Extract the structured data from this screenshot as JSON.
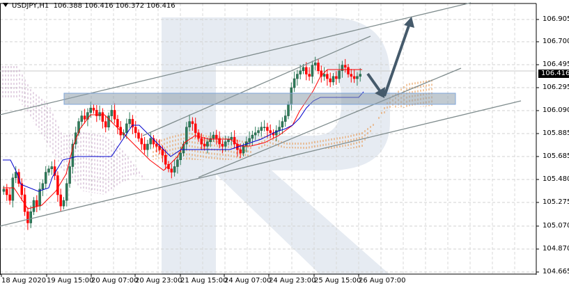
{
  "header": {
    "symbol": "USDJPY,H1",
    "open": "106.388",
    "high": "106.416",
    "low": "106.372",
    "close": "106.416"
  },
  "price_axis": {
    "labels": [
      "106.905",
      "106.700",
      "106.495",
      "106.295",
      "106.090",
      "105.885",
      "105.685",
      "105.480",
      "105.275",
      "105.070",
      "104.870",
      "104.665"
    ],
    "current_price": "106.416"
  },
  "time_axis": {
    "labels": [
      "18 Aug 2020",
      "19 Aug 15:00",
      "20 Aug 07:00",
      "20 Aug 23:00",
      "21 Aug 15:00",
      "24 Aug 07:00",
      "24 Aug 23:00",
      "25 Aug 15:00",
      "26 Aug 07:00"
    ]
  },
  "colors": {
    "bull": "#2e7d5b",
    "bear": "#ff0000",
    "tenkan": "#ff0000",
    "kijun": "#0000cc",
    "cloud_bull": "#e8954a",
    "cloud_bear": "#c8a8c8",
    "trendline": "#7f8c8d",
    "zone": "#8e9eab",
    "arrow": "#455a6b",
    "watermark": "#e6ebf2"
  },
  "chart_data": {
    "type": "candlestick",
    "title": "USDJPY,H1",
    "indicators": [
      "Ichimoku Kinko Hyo"
    ],
    "xlabel": "",
    "ylabel": "",
    "ylim": [
      104.665,
      106.905
    ],
    "x_ticks": [
      "18 Aug 2020",
      "19 Aug 15:00",
      "20 Aug 07:00",
      "20 Aug 23:00",
      "21 Aug 15:00",
      "24 Aug 07:00",
      "24 Aug 23:00",
      "25 Aug 15:00",
      "26 Aug 07:00"
    ],
    "y_ticks": [
      106.905,
      106.7,
      106.495,
      106.295,
      106.09,
      105.885,
      105.685,
      105.48,
      105.275,
      105.07,
      104.87,
      104.665
    ],
    "last_ohlc": {
      "open": 106.388,
      "high": 106.416,
      "low": 106.372,
      "close": 106.416
    },
    "resistance_zone": [
      106.18,
      106.29
    ],
    "forecast": "Pullback to ~106.22 support zone, then rise toward ~106.95",
    "approx_path": [
      {
        "x": "18 Aug 2020",
        "close": 105.35
      },
      {
        "x": "19 Aug 15:00",
        "close": 106.1
      },
      {
        "x": "20 Aug 07:00",
        "close": 105.95
      },
      {
        "x": "20 Aug 23:00",
        "close": 105.55
      },
      {
        "x": "21 Aug 15:00",
        "close": 105.85
      },
      {
        "x": "24 Aug 07:00",
        "close": 105.8
      },
      {
        "x": "24 Aug 23:00",
        "close": 105.95
      },
      {
        "x": "25 Aug 15:00",
        "close": 106.45
      },
      {
        "x": "26 Aug 07:00",
        "close": 106.41
      }
    ]
  }
}
